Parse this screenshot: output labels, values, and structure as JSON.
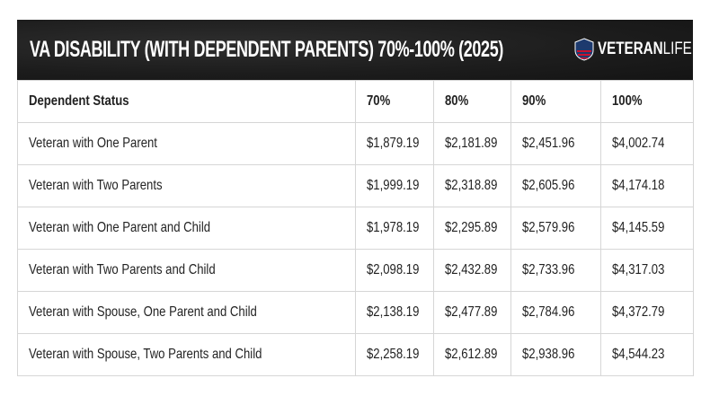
{
  "title": "VA DISABILITY (WITH DEPENDENT PARENTS) 70%-100% (2025)",
  "logo": {
    "mark": "VL",
    "bold": "VETERAN",
    "light": "LIFE",
    "colors": {
      "navy": "#1d3a6e",
      "red": "#c8102e"
    }
  },
  "table": {
    "headers": [
      "Dependent Status",
      "70%",
      "80%",
      "90%",
      "100%"
    ],
    "rows": [
      [
        "Veteran with One Parent",
        "$1,879.19",
        "$2,181.89",
        "$2,451.96",
        "$4,002.74"
      ],
      [
        "Veteran with Two Parents",
        "$1,999.19",
        "$2,318.89",
        "$2,605.96",
        "$4,174.18"
      ],
      [
        "Veteran with One Parent and Child",
        "$1,978.19",
        "$2,295.89",
        "$2,579.96",
        "$4,145.59"
      ],
      [
        "Veteran with Two Parents and Child",
        "$2,098.19",
        "$2,432.89",
        "$2,733.96",
        "$4,317.03"
      ],
      [
        "Veteran with Spouse, One Parent and Child",
        "$2,138.19",
        "$2,477.89",
        "$2,784.96",
        "$4,372.79"
      ],
      [
        "Veteran with Spouse, Two Parents and Child",
        "$2,258.19",
        "$2,612.89",
        "$2,938.96",
        "$4,544.23"
      ]
    ]
  }
}
